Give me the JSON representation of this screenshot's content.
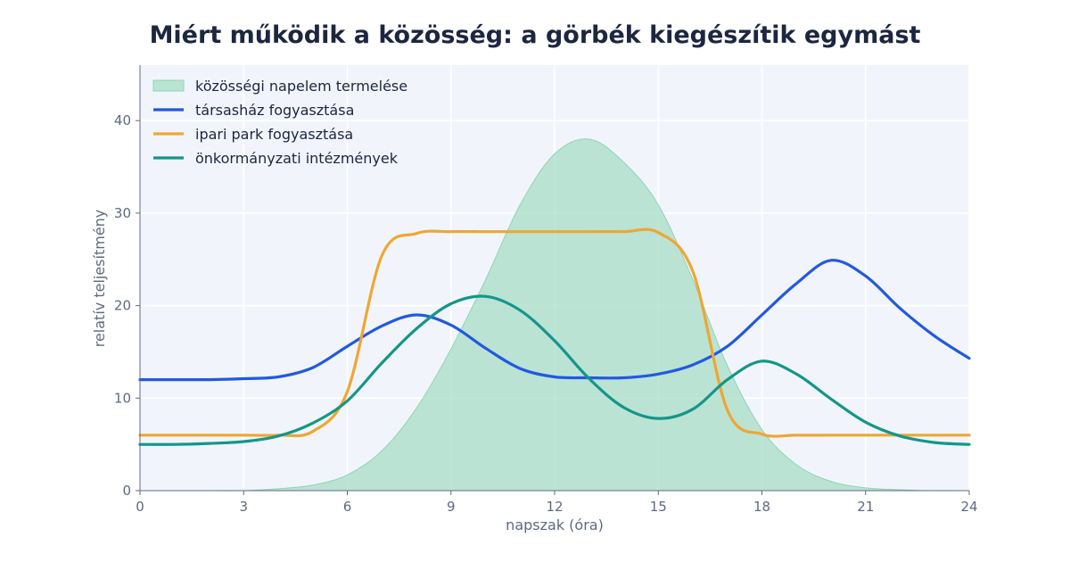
{
  "chart_data": {
    "type": "area",
    "title": "Miért működik a közösség: a görbék kiegészítik egymást",
    "xlabel": "napszak (óra)",
    "ylabel": "relatív teljesítmény",
    "xlim": [
      0,
      24
    ],
    "ylim": [
      0,
      46
    ],
    "xticks": [
      0,
      3,
      6,
      9,
      12,
      15,
      18,
      21,
      24
    ],
    "yticks": [
      0,
      10,
      20,
      30,
      40
    ],
    "grid": true,
    "legend_position": "top-left",
    "x": [
      0,
      1,
      2,
      3,
      4,
      5,
      6,
      7,
      8,
      9,
      10,
      11,
      12,
      13,
      14,
      15,
      16,
      17,
      18,
      19,
      20,
      21,
      22,
      23,
      24
    ],
    "series": [
      {
        "name": "közösségi napelem termelése",
        "kind": "area",
        "color": "#a6dcc5",
        "values": [
          0,
          0,
          0,
          0,
          0.2,
          0.6,
          1.7,
          4.3,
          8.9,
          15.3,
          22.8,
          30.9,
          36.4,
          38,
          35.5,
          30.9,
          22.8,
          13.5,
          6.6,
          2.8,
          1,
          0.3,
          0.1,
          0,
          0
        ]
      },
      {
        "name": "társasház fogyasztása",
        "kind": "line",
        "color": "#2259e0",
        "values": [
          12,
          12,
          12,
          12.1,
          12.3,
          13.3,
          15.6,
          17.8,
          19,
          17.9,
          15.4,
          13.2,
          12.3,
          12.2,
          12.2,
          12.6,
          13.6,
          15.6,
          19,
          22.4,
          24.9,
          23.2,
          19.7,
          16.7,
          14.3
        ]
      },
      {
        "name": "ipari park fogyasztása",
        "kind": "line",
        "color": "#efa632",
        "values": [
          6,
          6,
          6,
          6,
          6,
          6.4,
          10.7,
          25.4,
          27.8,
          28,
          28,
          28,
          28,
          28,
          28,
          27.9,
          23.7,
          8.7,
          6.1,
          6,
          6,
          6,
          6,
          6,
          6
        ]
      },
      {
        "name": "önkormányzati intézmények",
        "kind": "line",
        "color": "#14968a",
        "values": [
          5,
          5,
          5.1,
          5.3,
          5.9,
          7.3,
          9.7,
          13.8,
          17.5,
          20.2,
          21,
          19.5,
          16.2,
          12.1,
          9,
          7.8,
          8.8,
          12,
          14,
          12.6,
          9.9,
          7.4,
          5.9,
          5.2,
          5
        ]
      }
    ]
  }
}
